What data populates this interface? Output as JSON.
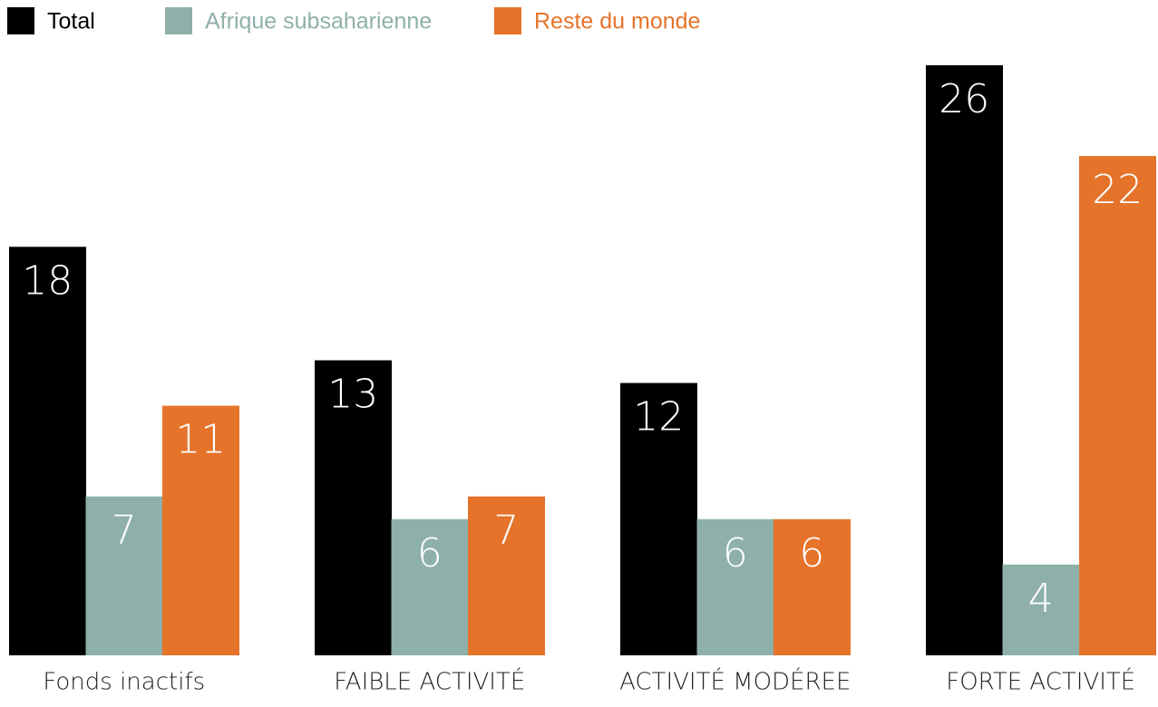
{
  "chart_data": {
    "type": "bar",
    "categories": [
      "Fonds inactifs",
      "FAIBLE ACTIVITÉ",
      "ACTIVITÉ MODÉREE",
      "FORTE ACTIVITÉ"
    ],
    "series": [
      {
        "name": "Total",
        "color": "#000000",
        "values": [
          18,
          13,
          12,
          26
        ]
      },
      {
        "name": "Afrique subsaharienne",
        "color": "#8fb0aa",
        "values": [
          7,
          6,
          6,
          4
        ]
      },
      {
        "name": "Reste du monde",
        "color": "#e5732a",
        "values": [
          11,
          7,
          6,
          22
        ]
      }
    ],
    "ylim": [
      0,
      26
    ],
    "legend": "top-left"
  }
}
